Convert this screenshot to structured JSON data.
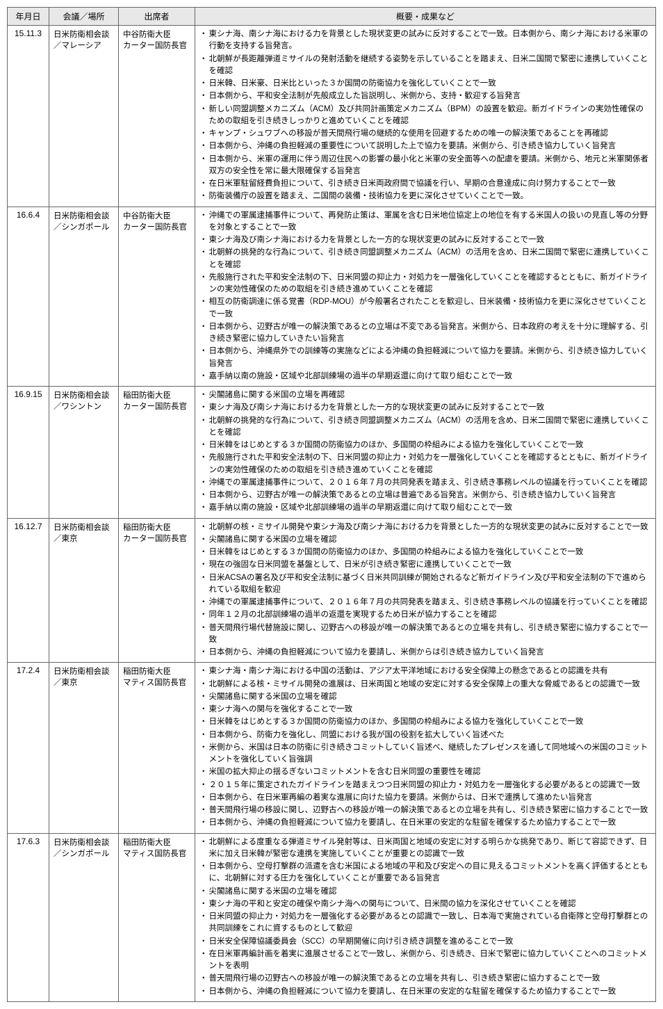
{
  "headers": {
    "date": "年月日",
    "meeting": "会議／場所",
    "attendees": "出席者",
    "summary": "概要・成果など"
  },
  "rows": [
    {
      "date": "15.11.3",
      "meeting": "日米防衛相会談／マレーシア",
      "attendees": "中谷防衛大臣\nカーター国防長官",
      "summary": [
        "東シナ海、南シナ海における力を背景とした現状変更の試みに反対することで一致。日本側から、南シナ海における米軍の行動を支持する旨発言。",
        "北朝鮮が長距離弾道ミサイルの発射活動を継続する姿勢を示していることを踏まえ、日米二国間で緊密に連携していくことを確認",
        "日米韓、日米豪、日米比といった３か国間の防衛協力を強化していくことで一致",
        "日本側から、平和安全法制が先般成立した旨説明し、米側から、支持・歓迎する旨発言",
        "新しい同盟調整メカニズム（ACM）及び共同計画策定メカニズム（BPM）の設置を歓迎。新ガイドラインの実効性確保のための取組を引き続きしっかりと進めていくことを確認",
        "キャンプ・シュワブへの移設が普天間飛行場の継続的な使用を回避するための唯一の解決策であることを再確認",
        "日本側から、沖縄の負担軽減の重要性について説明した上で協力を要請。米側から、引き続き協力していく旨発言",
        "日本側から、米軍の運用に伴う周辺住民への影響の最小化と米軍の安全面等への配慮を要請。米側から、地元と米軍関係者双方の安全性を常に最大限確保する旨発言",
        "在日米軍駐留経費負担について、引き続き日米両政府間で協議を行い、早期の合意達成に向け努力することで一致",
        "防衛装備庁の設置を踏まえ、二国間の装備・技術協力を更に深化させていくことで一致。"
      ]
    },
    {
      "date": "16.6.4",
      "meeting": "日米防衛相会談／シンガポール",
      "attendees": "中谷防衛大臣\nカーター国防長官",
      "summary": [
        "沖縄での軍属逮捕事件について、再発防止策は、軍属を含む日米地位協定上の地位を有する米国人の扱いの見直し等の分野を対象とすることで一致",
        "東シナ海及び南シナ海における力を背景とした一方的な現状変更の試みに反対することで一致",
        "北朝鮮の挑発的な行為について、引き続き同盟調整メカニズム（ACM）の活用を含め、日米二国間で緊密に連携していくことを確認",
        "先般施行された平和安全法制の下、日米同盟の抑止力・対処力を一層強化していくことを確認するとともに、新ガイドラインの実効性確保のための取組を引き続き進めていくことを確認",
        "相互の防衛調達に係る覚書（RDP-MOU）が今般署名されたことを歓迎し、日米装備・技術協力を更に深化させていくことで一致",
        "日本側から、辺野古が唯一の解決策であるとの立場は不変である旨発言。米側から、日本政府の考えを十分に理解する、引き続き緊密に協力していきたい旨発言",
        "日本側から、沖縄県外での訓練等の実施などによる沖縄の負担軽減について協力を要請。米側から、引き続き協力していく旨発言",
        "嘉手納以南の施設・区域や北部訓練場の過半の早期返還に向けて取り組むことで一致"
      ]
    },
    {
      "date": "16.9.15",
      "meeting": "日米防衛相会談／ワシントン",
      "attendees": "稲田防衛大臣\nカーター国防長官",
      "summary": [
        "尖閣諸島に関する米国の立場を再確認",
        "東シナ海及び南シナ海における力を背景とした一方的な現状変更の試みに反対することで一致",
        "北朝鮮の挑発的な行為について、引き続き同盟調整メカニズム（ACM）の活用を含め、日米二国間で緊密に連携していくことを確認",
        "日米韓をはじめとする３か国間の防衛協力のほか、多国間の枠組みによる協力を強化していくことで一致",
        "先般施行された平和安全法制の下、日米同盟の抑止力・対処力を一層強化していくことを確認するとともに、新ガイドラインの実効性確保のための取組を引き続き進めていくことを確認",
        "沖縄での軍属逮捕事件について、２０１６年７月の共同発表を踏まえ、引き続き事務レベルの協議を行っていくことを確認",
        "日本側から、辺野古が唯一の解決策であるとの立場は普遍である旨発言。米側から、引き続き協力していく旨発言",
        "嘉手納以南の施設・区域や北部訓練場の過半の早期返還に向けて取り組むことで一致"
      ]
    },
    {
      "date": "16.12.7",
      "meeting": "日米防衛相会談／東京",
      "attendees": "稲田防衛大臣\nカーター国防長官",
      "summary": [
        "北朝鮮の核・ミサイル開発や東シナ海及び南シナ海における力を背景とした一方的な現状変更の試みに反対することで一致",
        "尖閣諸島に関する米国の立場を確認",
        "日米韓をはじめとする３か国間の防衛協力のほか、多国間の枠組みによる協力を強化していくことで一致",
        "現在の強固な日米同盟を基盤として、日米が引き続き緊密に連携していくことで一致",
        "日米ACSAの署名及び平和安全法制に基づく日米共同訓練が開始されるなど新ガイドライン及び平和安全法制の下で進められている取組を歓迎",
        "沖縄での軍属逮捕事件について、２０１６年７月の共同発表を踏まえ、引き続き事務レベルの協議を行っていくことを確認",
        "同年１２月の北部訓練場の過半の返還を実現するため日米が協力することを確認",
        "普天間飛行場代替施設に関し、辺野古への移設が唯一の解決策であるとの立場を共有し、引き続き緊密に協力することで一致",
        "日本側から、沖縄の負担軽減について協力を要請し、米側からは引き続き協力していく旨発言"
      ]
    },
    {
      "date": "17.2.4",
      "meeting": "日米防衛相会談／東京",
      "attendees": "稲田防衛大臣\nマティス国防長官",
      "summary": [
        "東シナ海・南シナ海における中国の活動は、アジア太平洋地域における安全保障上の懸念であるとの認識を共有",
        "北朝鮮による核・ミサイル開発の進展は、日米両国と地域の安定に対する安全保障上の重大な脅威であるとの認識で一致",
        "尖閣諸島に関する米国の立場を確認",
        "東シナ海への関与を強化することで一致",
        "日米韓をはじめとする３か国間の防衛協力のほか、多国間の枠組みによる協力を強化していくことで一致",
        "日本側から、防衛力を強化し、同盟における我が国の役割を拡大していく旨述べた",
        "米側から、米国は日本の防衛に引き続きコミットしていく旨述べ、継続したプレゼンスを通して同地域への米国のコミットメントを強化していく旨強調",
        "米国の拡大抑止の揺るぎないコミットメントを含む日米同盟の重要性を確認",
        "２０１５年に策定されたガイドラインを踏まえつつ日米同盟の抑止力・対処力を一層強化する必要があるとの認識で一致",
        "日本側から、在日米軍再編の着実な進展に向けた協力を要請。米側からは、日米で連携して進めたい旨発言",
        "普天間飛行場の移設に関し、辺野古への移設が唯一の解決策であるとの立場を共有し、引き続き緊密に協力することで一致",
        "日本側から、沖縄の負担軽減について協力を要請し、在日米軍の安定的な駐留を確保するため協力することで一致"
      ]
    },
    {
      "date": "17.6.3",
      "meeting": "日米防衛相会談／シンガポール",
      "attendees": "稲田防衛大臣\nマティス国防長官",
      "summary": [
        "北朝鮮による度重なる弾道ミサイル発射等は、日米両国と地域の安定に対する明らかな挑発であり、断じて容認できず、日米に加え日米韓が緊密な連携を実施していくことが重要との認識で一致",
        "日本側から、空母打撃群の派遣を含む米国による地域の平和及び安定への目に見えるコミットメントを高く評価するとともに、北朝鮮に対する圧力を強化していくことが重要である旨発言",
        "尖閣諸島に関する米国の立場を確認",
        "東シナ海の平和と安定の確保や南シナ海への関与について、日米間の協力を深化させていくことを確認",
        "日米同盟の抑止力・対処力を一層強化する必要があるとの認識で一致し、日本海で実施されている自衛隊と空母打撃群との共同訓練をこれに資するものとして歓迎",
        "日米安全保障協議委員会（SCC）の早期開催に向け引き続き調整を進めることで一致",
        "在日米軍再編計画を着実に進展させることで一致し、米側から、引き続き、日米で緊密に協力していくことへのコミットメントを表明",
        "普天間飛行場の辺野古への移設が唯一の解決策であるとの立場を共有し、引き続き緊密に協力することで一致",
        "日本側から、沖縄の負担軽減について協力を要請し、在日米軍の安定的な駐留を確保するため協力することで一致"
      ]
    }
  ]
}
